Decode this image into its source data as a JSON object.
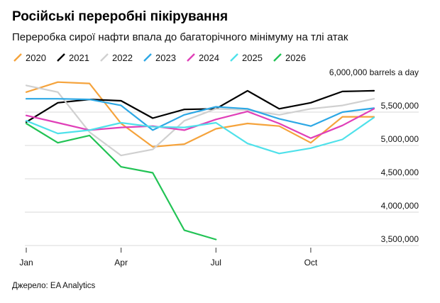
{
  "header": {
    "title": "Російські переробні пікірування",
    "subtitle": "Переробка сирої нафти впала до багаторічного мінімуму на тлі атак"
  },
  "footer": {
    "source": "Джерело: EA Analytics"
  },
  "chart_data": {
    "type": "line",
    "title": "Російські переробні пікірування",
    "subtitle": "Переробка сирої нафти впала до багаторічного мінімуму на тлі атак",
    "xlabel": "",
    "ylabel": "barrels a day",
    "x": [
      1,
      2,
      3,
      4,
      5,
      6,
      7,
      8,
      9,
      10,
      11,
      12
    ],
    "xticks": [
      {
        "x": 1,
        "label": "Jan"
      },
      {
        "x": 4,
        "label": "Apr"
      },
      {
        "x": 7,
        "label": "Jul"
      },
      {
        "x": 10,
        "label": "Oct"
      }
    ],
    "xlim": [
      1,
      12
    ],
    "ylim": [
      3500000,
      6000000
    ],
    "yticks": [
      {
        "value": 6000000,
        "label": "6,000,000 barrels a day"
      },
      {
        "value": 5500000,
        "label": "5,500,000"
      },
      {
        "value": 5000000,
        "label": "5,000,000"
      },
      {
        "value": 4500000,
        "label": "4,500,000"
      },
      {
        "value": 4000000,
        "label": "4,000,000"
      },
      {
        "value": 3500000,
        "label": "3,500,000"
      }
    ],
    "grid": true,
    "legend_position": "top-left",
    "series": [
      {
        "name": "2020",
        "color": "#f5a33c",
        "values": [
          5800000,
          5950000,
          5930000,
          5330000,
          4980000,
          5020000,
          5250000,
          5330000,
          5290000,
          5040000,
          5430000,
          5430000
        ]
      },
      {
        "name": "2021",
        "color": "#000000",
        "values": [
          5350000,
          5640000,
          5690000,
          5670000,
          5410000,
          5540000,
          5550000,
          5820000,
          5550000,
          5640000,
          5810000,
          5820000
        ]
      },
      {
        "name": "2022",
        "color": "#d0d0d0",
        "values": [
          5900000,
          5800000,
          5200000,
          4850000,
          4940000,
          5370000,
          5550000,
          5530000,
          5460000,
          5550000,
          5600000,
          5700000
        ]
      },
      {
        "name": "2023",
        "color": "#2da8e5",
        "values": [
          5700000,
          5700000,
          5690000,
          5600000,
          5230000,
          5460000,
          5580000,
          5550000,
          5400000,
          5290000,
          5500000,
          5560000
        ]
      },
      {
        "name": "2024",
        "color": "#e03fb8",
        "values": [
          5450000,
          5340000,
          5230000,
          5270000,
          5290000,
          5230000,
          5390000,
          5510000,
          5330000,
          5110000,
          5300000,
          5550000
        ]
      },
      {
        "name": "2025",
        "color": "#4fe1ea",
        "values": [
          5370000,
          5180000,
          5230000,
          5340000,
          5280000,
          5270000,
          5340000,
          5030000,
          4880000,
          4960000,
          5090000,
          5420000
        ]
      },
      {
        "name": "2026",
        "color": "#22c355",
        "values": [
          5330000,
          5040000,
          5150000,
          4680000,
          4590000,
          3730000,
          3590000,
          null,
          null,
          null,
          null,
          null
        ]
      }
    ]
  }
}
